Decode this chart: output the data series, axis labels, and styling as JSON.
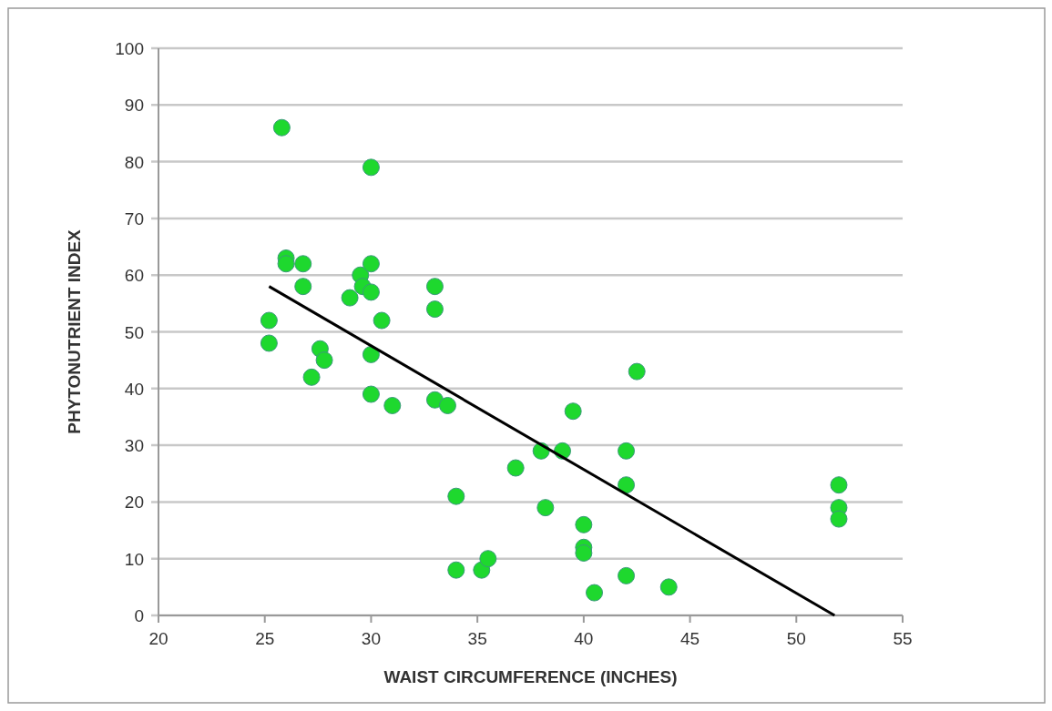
{
  "chart_data": {
    "type": "scatter",
    "xlabel": "WAIST CIRCUMFERENCE (INCHES)",
    "ylabel": "PHYTONUTRIENT INDEX",
    "xlim": [
      20,
      55
    ],
    "xticks": [
      20,
      25,
      30,
      35,
      40,
      45,
      50,
      55
    ],
    "ylim": [
      0,
      100
    ],
    "yticks": [
      0,
      10,
      20,
      30,
      40,
      50,
      60,
      70,
      80,
      90,
      100
    ],
    "grid": "y",
    "marker": "circle",
    "series": [
      {
        "color": "#1ed82e",
        "x": [
          25.8,
          30,
          26,
          26,
          26.8,
          26.8,
          29.5,
          30,
          29.6,
          30,
          29,
          33,
          33,
          30.5,
          25.2,
          25.2,
          27.6,
          27.8,
          27.2,
          30,
          30,
          31,
          33,
          33.6,
          42.5,
          39.5,
          38,
          39,
          42,
          36.8,
          42,
          34,
          38.2,
          40,
          40,
          40,
          34,
          35.2,
          35.5,
          42,
          44,
          40.5,
          52,
          52,
          52
        ],
        "values": [
          86,
          79,
          63,
          62,
          62,
          58,
          60,
          62,
          58,
          57,
          56,
          58,
          54,
          52,
          52,
          48,
          47,
          45,
          42,
          46,
          39,
          37,
          38,
          37,
          43,
          36,
          29,
          29,
          29,
          26,
          23,
          21,
          19,
          16,
          12,
          11,
          8,
          8,
          10,
          7,
          5,
          4,
          23,
          19,
          17
        ]
      },
      {
        "type": "line",
        "color": "#000000",
        "line_style": "solid",
        "marker": "none",
        "x": [
          25.2,
          51.8
        ],
        "values": [
          58,
          0
        ]
      }
    ]
  }
}
